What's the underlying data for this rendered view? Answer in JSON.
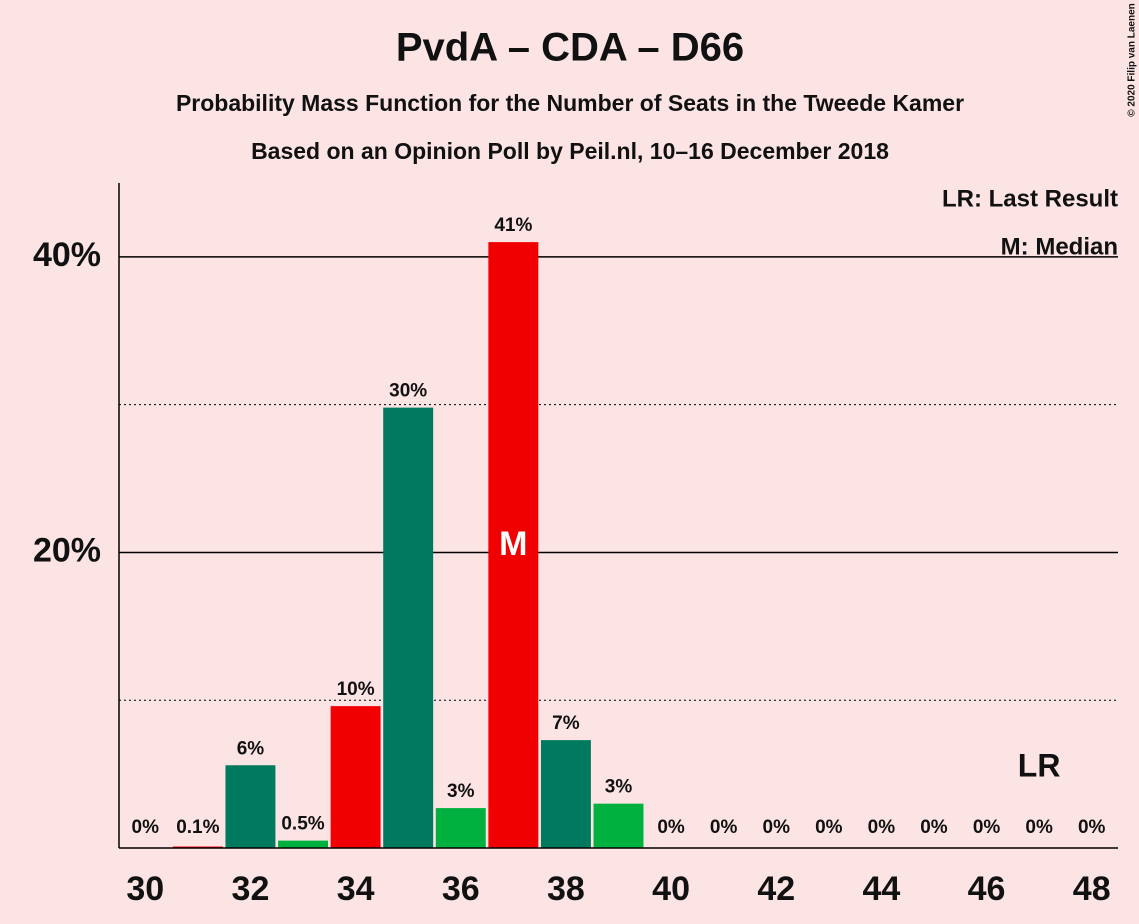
{
  "chart_data": {
    "type": "bar",
    "title": "PvdA – CDA – D66",
    "subtitle": "Probability Mass Function for the Number of Seats in the Tweede Kamer",
    "subtitle2": "Based on an Opinion Poll by Peil.nl, 10–16 December 2018",
    "copyright": "© 2020 Filip van Laenen",
    "legend": [
      "LR: Last Result",
      "M: Median"
    ],
    "x": [
      30,
      31,
      32,
      33,
      34,
      35,
      36,
      37,
      38,
      39,
      40,
      41,
      42,
      43,
      44,
      45,
      46,
      47,
      48
    ],
    "values": [
      0,
      0.1,
      5.6,
      0.5,
      9.6,
      29.8,
      2.7,
      41,
      7.3,
      3,
      0,
      0,
      0,
      0,
      0,
      0,
      0,
      0,
      0
    ],
    "value_labels": [
      "0%",
      "0.1%",
      "6%",
      "0.5%",
      "10%",
      "30%",
      "3%",
      "41%",
      "7%",
      "3%",
      "0%",
      "0%",
      "0%",
      "0%",
      "0%",
      "0%",
      "0%",
      "0%",
      "0%"
    ],
    "colors": [
      "#00b140",
      "#f00000",
      "#007a5e",
      "#00b140",
      "#f00000",
      "#007a5e",
      "#00b140",
      "#f00000",
      "#007a5e",
      "#00b140",
      "#f00000",
      "#007a5e",
      "#00b140",
      "#f00000",
      "#007a5e",
      "#00b140",
      "#f00000",
      "#007a5e",
      "#00b140"
    ],
    "median": 37,
    "median_label": "M",
    "last_result": 47,
    "last_result_label": "LR",
    "xlim": [
      29.5,
      48.5
    ],
    "xticks": [
      30,
      32,
      34,
      36,
      38,
      40,
      42,
      44,
      46,
      48
    ],
    "ylim": [
      0,
      45
    ],
    "yticks": [
      {
        "value": 20,
        "label": "20%"
      },
      {
        "value": 40,
        "label": "40%"
      }
    ],
    "minor_yticks": [
      10,
      30
    ]
  }
}
